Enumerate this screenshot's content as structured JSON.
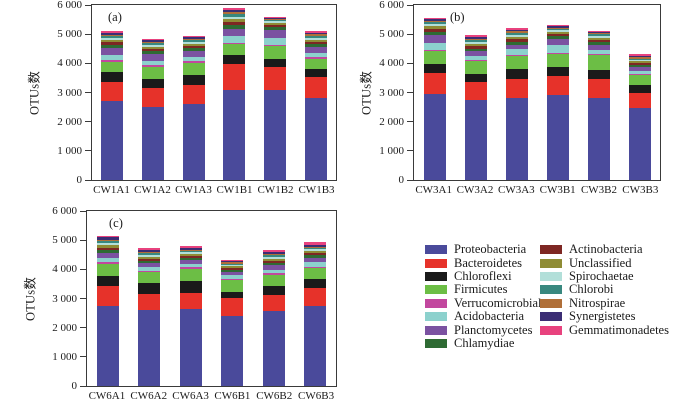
{
  "figure": {
    "ylabel": "OTUs数",
    "ymax": 6000,
    "yticks": [
      0,
      1000,
      2000,
      3000,
      4000,
      5000,
      6000
    ],
    "ytick_labels": [
      "0",
      "1 000",
      "2 000",
      "3 000",
      "4 000",
      "5 000",
      "6 000"
    ],
    "grid": false,
    "legend_position": "bottom-right"
  },
  "phyla": [
    {
      "name": "Proteobacteria",
      "color": "#4A4A9B"
    },
    {
      "name": "Bacteroidetes",
      "color": "#E6322A"
    },
    {
      "name": "Chloroflexi",
      "color": "#1A1A1A"
    },
    {
      "name": "Firmicutes",
      "color": "#6CBE45"
    },
    {
      "name": "Verrucomicrobial",
      "color": "#C2479E"
    },
    {
      "name": "Acidobacteria",
      "color": "#8CD1CD"
    },
    {
      "name": "Planctomycetes",
      "color": "#7B52A1"
    },
    {
      "name": "Chlamydiae",
      "color": "#2E6B33"
    },
    {
      "name": "Actinobacteria",
      "color": "#7E2723"
    },
    {
      "name": "Unclassified",
      "color": "#8F8C35"
    },
    {
      "name": "Spirochaetae",
      "color": "#B2DFD9"
    },
    {
      "name": "Chlorobi",
      "color": "#38887F"
    },
    {
      "name": "Nitrospirae",
      "color": "#B06F38"
    },
    {
      "name": "Synergistetes",
      "color": "#3B2D74"
    },
    {
      "name": "Gemmatimonadetes",
      "color": "#E8427E"
    }
  ],
  "legend_columns": [
    8,
    7
  ],
  "chart_data": [
    {
      "panel_label": "(a)",
      "type": "bar",
      "stacked": true,
      "ylabel": "OTUs数",
      "ylim": [
        0,
        6000
      ],
      "categories": [
        "CW1A1",
        "CW1A2",
        "CW1A3",
        "CW1B1",
        "CW1B2",
        "CW1B3"
      ],
      "series": [
        {
          "name": "Proteobacteria",
          "values": [
            2670,
            2490,
            2570,
            3050,
            3040,
            2780
          ]
        },
        {
          "name": "Bacteroidetes",
          "values": [
            660,
            620,
            650,
            880,
            780,
            710
          ]
        },
        {
          "name": "Chloroflexi",
          "values": [
            340,
            320,
            350,
            320,
            290,
            280
          ]
        },
        {
          "name": "Firmicutes",
          "values": [
            320,
            400,
            410,
            350,
            430,
            340
          ]
        },
        {
          "name": "Verrucomicrobial",
          "values": [
            70,
            60,
            50,
            60,
            50,
            50
          ]
        },
        {
          "name": "Acidobacteria",
          "values": [
            170,
            150,
            140,
            210,
            210,
            150
          ]
        },
        {
          "name": "Planctomycetes",
          "values": [
            250,
            230,
            220,
            250,
            290,
            200
          ]
        },
        {
          "name": "Chlamydiae",
          "values": [
            100,
            90,
            80,
            120,
            90,
            90
          ]
        },
        {
          "name": "Actinobacteria",
          "values": [
            90,
            80,
            80,
            110,
            80,
            80
          ]
        },
        {
          "name": "Unclassified",
          "values": [
            80,
            70,
            70,
            100,
            70,
            80
          ]
        },
        {
          "name": "Spirochaetae",
          "values": [
            70,
            70,
            60,
            90,
            60,
            70
          ]
        },
        {
          "name": "Chlorobi",
          "values": [
            60,
            60,
            60,
            80,
            40,
            60
          ]
        },
        {
          "name": "Nitrospirae",
          "values": [
            50,
            50,
            50,
            70,
            30,
            50
          ]
        },
        {
          "name": "Synergistetes",
          "values": [
            60,
            50,
            50,
            80,
            30,
            60
          ]
        },
        {
          "name": "Gemmatimonadetes",
          "values": [
            70,
            60,
            50,
            60,
            30,
            50
          ]
        }
      ]
    },
    {
      "panel_label": "(b)",
      "type": "bar",
      "stacked": true,
      "ylabel": "OTUs数",
      "ylim": [
        0,
        6000
      ],
      "categories": [
        "CW3A1",
        "CW3A2",
        "CW3A3",
        "CW3B1",
        "CW3B2",
        "CW3B3"
      ],
      "series": [
        {
          "name": "Proteobacteria",
          "values": [
            2930,
            2710,
            2790,
            2880,
            2770,
            2430
          ]
        },
        {
          "name": "Bacteroidetes",
          "values": [
            700,
            600,
            640,
            660,
            660,
            510
          ]
        },
        {
          "name": "Chloroflexi",
          "values": [
            300,
            290,
            320,
            290,
            310,
            280
          ]
        },
        {
          "name": "Firmicutes",
          "values": [
            450,
            420,
            460,
            430,
            490,
            350
          ]
        },
        {
          "name": "Verrucomicrobial",
          "values": [
            40,
            40,
            40,
            40,
            40,
            40
          ]
        },
        {
          "name": "Acidobacteria",
          "values": [
            210,
            140,
            180,
            270,
            150,
            100
          ]
        },
        {
          "name": "Planctomycetes",
          "values": [
            280,
            170,
            160,
            210,
            160,
            110
          ]
        },
        {
          "name": "Chlamydiae",
          "values": [
            110,
            90,
            100,
            90,
            90,
            70
          ]
        },
        {
          "name": "Actinobacteria",
          "values": [
            100,
            80,
            90,
            80,
            80,
            70
          ]
        },
        {
          "name": "Unclassified",
          "values": [
            90,
            80,
            80,
            70,
            80,
            60
          ]
        },
        {
          "name": "Spirochaetae",
          "values": [
            80,
            70,
            70,
            60,
            60,
            50
          ]
        },
        {
          "name": "Chlorobi",
          "values": [
            60,
            60,
            60,
            50,
            50,
            50
          ]
        },
        {
          "name": "Nitrospirae",
          "values": [
            50,
            50,
            50,
            40,
            40,
            40
          ]
        },
        {
          "name": "Synergistetes",
          "values": [
            50,
            60,
            50,
            50,
            40,
            50
          ]
        },
        {
          "name": "Gemmatimonadetes",
          "values": [
            40,
            50,
            50,
            40,
            40,
            50
          ]
        }
      ]
    },
    {
      "panel_label": "(c)",
      "type": "bar",
      "stacked": true,
      "ylabel": "OTUs数",
      "ylim": [
        0,
        6000
      ],
      "categories": [
        "CW6A1",
        "CW6A2",
        "CW6A3",
        "CW6B1",
        "CW6B2",
        "CW6B3"
      ],
      "series": [
        {
          "name": "Proteobacteria",
          "values": [
            2710,
            2570,
            2600,
            2360,
            2540,
            2710
          ]
        },
        {
          "name": "Bacteroidetes",
          "values": [
            670,
            540,
            570,
            640,
            540,
            600
          ]
        },
        {
          "name": "Chloroflexi",
          "values": [
            350,
            370,
            380,
            190,
            320,
            320
          ]
        },
        {
          "name": "Firmicutes",
          "values": [
            420,
            380,
            430,
            410,
            380,
            380
          ]
        },
        {
          "name": "Verrucomicrobial",
          "values": [
            50,
            40,
            40,
            40,
            40,
            40
          ]
        },
        {
          "name": "Acidobacteria",
          "values": [
            130,
            140,
            120,
            110,
            130,
            150
          ]
        },
        {
          "name": "Planctomycetes",
          "values": [
            180,
            130,
            130,
            120,
            140,
            150
          ]
        },
        {
          "name": "Chlamydiae",
          "values": [
            90,
            80,
            80,
            70,
            80,
            80
          ]
        },
        {
          "name": "Actinobacteria",
          "values": [
            90,
            70,
            70,
            60,
            80,
            80
          ]
        },
        {
          "name": "Unclassified",
          "values": [
            80,
            70,
            70,
            60,
            70,
            70
          ]
        },
        {
          "name": "Spirochaetae",
          "values": [
            70,
            60,
            50,
            50,
            60,
            60
          ]
        },
        {
          "name": "Chlorobi",
          "values": [
            70,
            60,
            50,
            40,
            50,
            50
          ]
        },
        {
          "name": "Nitrospirae",
          "values": [
            60,
            50,
            40,
            40,
            40,
            40
          ]
        },
        {
          "name": "Synergistetes",
          "values": [
            70,
            60,
            60,
            50,
            70,
            70
          ]
        },
        {
          "name": "Gemmatimonadetes",
          "values": [
            60,
            50,
            60,
            50,
            70,
            80
          ]
        }
      ]
    }
  ]
}
